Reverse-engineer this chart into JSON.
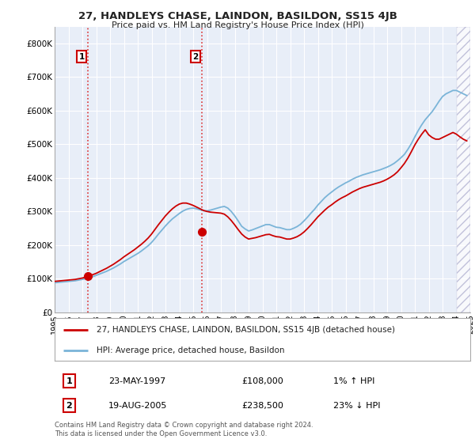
{
  "title": "27, HANDLEYS CHASE, LAINDON, BASILDON, SS15 4JB",
  "subtitle": "Price paid vs. HM Land Registry's House Price Index (HPI)",
  "background_color": "#ffffff",
  "plot_bg_color": "#e8eef8",
  "grid_color": "#ffffff",
  "sale1_date": 1997.39,
  "sale1_price": 108000,
  "sale1_label": "1",
  "sale2_date": 2005.63,
  "sale2_price": 238500,
  "sale2_label": "2",
  "xmin": 1995,
  "xmax": 2025,
  "ymin": 0,
  "ymax": 850000,
  "yticks": [
    0,
    100000,
    200000,
    300000,
    400000,
    500000,
    600000,
    700000,
    800000
  ],
  "ytick_labels": [
    "£0",
    "£100K",
    "£200K",
    "£300K",
    "£400K",
    "£500K",
    "£600K",
    "£700K",
    "£800K"
  ],
  "xticks": [
    1995,
    1996,
    1997,
    1998,
    1999,
    2000,
    2001,
    2002,
    2003,
    2004,
    2005,
    2006,
    2007,
    2008,
    2009,
    2010,
    2011,
    2012,
    2013,
    2014,
    2015,
    2016,
    2017,
    2018,
    2019,
    2020,
    2021,
    2022,
    2023,
    2024,
    2025
  ],
  "legend_line1": "27, HANDLEYS CHASE, LAINDON, BASILDON, SS15 4JB (detached house)",
  "legend_line2": "HPI: Average price, detached house, Basildon",
  "annotation1_date": "23-MAY-1997",
  "annotation1_price": "£108,000",
  "annotation1_hpi": "1% ↑ HPI",
  "annotation2_date": "19-AUG-2005",
  "annotation2_price": "£238,500",
  "annotation2_hpi": "23% ↓ HPI",
  "footer": "Contains HM Land Registry data © Crown copyright and database right 2024.\nThis data is licensed under the Open Government Licence v3.0.",
  "hpi_color": "#7ab4d8",
  "price_color": "#cc0000",
  "sale_dot_color": "#cc0000",
  "dashed_line_color": "#dd3333",
  "hatch_start": 2024.0,
  "hpi_data_x": [
    1995.0,
    1995.25,
    1995.5,
    1995.75,
    1996.0,
    1996.25,
    1996.5,
    1996.75,
    1997.0,
    1997.25,
    1997.5,
    1997.75,
    1998.0,
    1998.25,
    1998.5,
    1998.75,
    1999.0,
    1999.25,
    1999.5,
    1999.75,
    2000.0,
    2000.25,
    2000.5,
    2000.75,
    2001.0,
    2001.25,
    2001.5,
    2001.75,
    2002.0,
    2002.25,
    2002.5,
    2002.75,
    2003.0,
    2003.25,
    2003.5,
    2003.75,
    2004.0,
    2004.25,
    2004.5,
    2004.75,
    2005.0,
    2005.25,
    2005.5,
    2005.75,
    2006.0,
    2006.25,
    2006.5,
    2006.75,
    2007.0,
    2007.25,
    2007.5,
    2007.75,
    2008.0,
    2008.25,
    2008.5,
    2008.75,
    2009.0,
    2009.25,
    2009.5,
    2009.75,
    2010.0,
    2010.25,
    2010.5,
    2010.75,
    2011.0,
    2011.25,
    2011.5,
    2011.75,
    2012.0,
    2012.25,
    2012.5,
    2012.75,
    2013.0,
    2013.25,
    2013.5,
    2013.75,
    2014.0,
    2014.25,
    2014.5,
    2014.75,
    2015.0,
    2015.25,
    2015.5,
    2015.75,
    2016.0,
    2016.25,
    2016.5,
    2016.75,
    2017.0,
    2017.25,
    2017.5,
    2017.75,
    2018.0,
    2018.25,
    2018.5,
    2018.75,
    2019.0,
    2019.25,
    2019.5,
    2019.75,
    2020.0,
    2020.25,
    2020.5,
    2020.75,
    2021.0,
    2021.25,
    2021.5,
    2021.75,
    2022.0,
    2022.25,
    2022.5,
    2022.75,
    2023.0,
    2023.25,
    2023.5,
    2023.75,
    2024.0,
    2024.25,
    2024.5,
    2024.75
  ],
  "hpi_data_y": [
    88000,
    89000,
    90000,
    91000,
    92000,
    93000,
    94000,
    96000,
    98000,
    100000,
    103000,
    106000,
    110000,
    114000,
    118000,
    122000,
    127000,
    132000,
    138000,
    144000,
    151000,
    157000,
    163000,
    169000,
    175000,
    182000,
    190000,
    198000,
    208000,
    220000,
    233000,
    245000,
    257000,
    268000,
    278000,
    286000,
    294000,
    301000,
    306000,
    309000,
    310000,
    308000,
    305000,
    302000,
    302000,
    304000,
    307000,
    310000,
    313000,
    315000,
    310000,
    300000,
    287000,
    272000,
    256000,
    248000,
    242000,
    245000,
    249000,
    253000,
    257000,
    261000,
    261000,
    257000,
    253000,
    252000,
    249000,
    246000,
    246000,
    250000,
    255000,
    262000,
    272000,
    283000,
    295000,
    306000,
    319000,
    330000,
    341000,
    350000,
    358000,
    366000,
    373000,
    379000,
    385000,
    390000,
    396000,
    401000,
    405000,
    409000,
    412000,
    415000,
    418000,
    421000,
    424000,
    428000,
    432000,
    437000,
    443000,
    451000,
    460000,
    470000,
    485000,
    502000,
    522000,
    541000,
    558000,
    573000,
    585000,
    597000,
    612000,
    628000,
    642000,
    650000,
    655000,
    660000,
    660000,
    655000,
    650000,
    645000
  ],
  "price_data_x": [
    1995.0,
    1995.25,
    1995.5,
    1995.75,
    1996.0,
    1996.25,
    1996.5,
    1996.75,
    1997.0,
    1997.25,
    1997.5,
    1997.75,
    1998.0,
    1998.25,
    1998.5,
    1998.75,
    1999.0,
    1999.25,
    1999.5,
    1999.75,
    2000.0,
    2000.25,
    2000.5,
    2000.75,
    2001.0,
    2001.25,
    2001.5,
    2001.75,
    2002.0,
    2002.25,
    2002.5,
    2002.75,
    2003.0,
    2003.25,
    2003.5,
    2003.75,
    2004.0,
    2004.25,
    2004.5,
    2004.75,
    2005.0,
    2005.25,
    2005.5,
    2005.75,
    2006.0,
    2006.25,
    2006.5,
    2006.75,
    2007.0,
    2007.25,
    2007.5,
    2007.75,
    2008.0,
    2008.25,
    2008.5,
    2008.75,
    2009.0,
    2009.25,
    2009.5,
    2009.75,
    2010.0,
    2010.25,
    2010.5,
    2010.75,
    2011.0,
    2011.25,
    2011.5,
    2011.75,
    2012.0,
    2012.25,
    2012.5,
    2012.75,
    2013.0,
    2013.25,
    2013.5,
    2013.75,
    2014.0,
    2014.25,
    2014.5,
    2014.75,
    2015.0,
    2015.25,
    2015.5,
    2015.75,
    2016.0,
    2016.25,
    2016.5,
    2016.75,
    2017.0,
    2017.25,
    2017.5,
    2017.75,
    2018.0,
    2018.25,
    2018.5,
    2018.75,
    2019.0,
    2019.25,
    2019.5,
    2019.75,
    2020.0,
    2020.25,
    2020.5,
    2020.75,
    2021.0,
    2021.25,
    2021.5,
    2021.75,
    2022.0,
    2022.25,
    2022.5,
    2022.75,
    2023.0,
    2023.25,
    2023.5,
    2023.75,
    2024.0,
    2024.25,
    2024.5,
    2024.75
  ],
  "price_data_y": [
    92000,
    93000,
    94000,
    95000,
    96000,
    97000,
    98000,
    100000,
    102000,
    105000,
    108000,
    112000,
    116000,
    121000,
    126000,
    131000,
    137000,
    143000,
    150000,
    157000,
    165000,
    172000,
    179000,
    186000,
    194000,
    202000,
    211000,
    221000,
    233000,
    247000,
    261000,
    274000,
    287000,
    298000,
    308000,
    316000,
    322000,
    325000,
    325000,
    322000,
    318000,
    313000,
    308000,
    303000,
    300000,
    298000,
    297000,
    296000,
    295000,
    292000,
    284000,
    273000,
    260000,
    246000,
    233000,
    224000,
    218000,
    220000,
    222000,
    225000,
    228000,
    231000,
    232000,
    228000,
    225000,
    224000,
    221000,
    218000,
    218000,
    221000,
    225000,
    231000,
    239000,
    249000,
    260000,
    272000,
    284000,
    294000,
    304000,
    313000,
    320000,
    328000,
    335000,
    341000,
    346000,
    352000,
    358000,
    363000,
    368000,
    372000,
    375000,
    378000,
    381000,
    384000,
    387000,
    391000,
    396000,
    402000,
    409000,
    418000,
    430000,
    443000,
    459000,
    478000,
    498000,
    515000,
    530000,
    543000,
    528000,
    520000,
    515000,
    515000,
    520000,
    525000,
    530000,
    535000,
    530000,
    522000,
    515000,
    510000
  ]
}
